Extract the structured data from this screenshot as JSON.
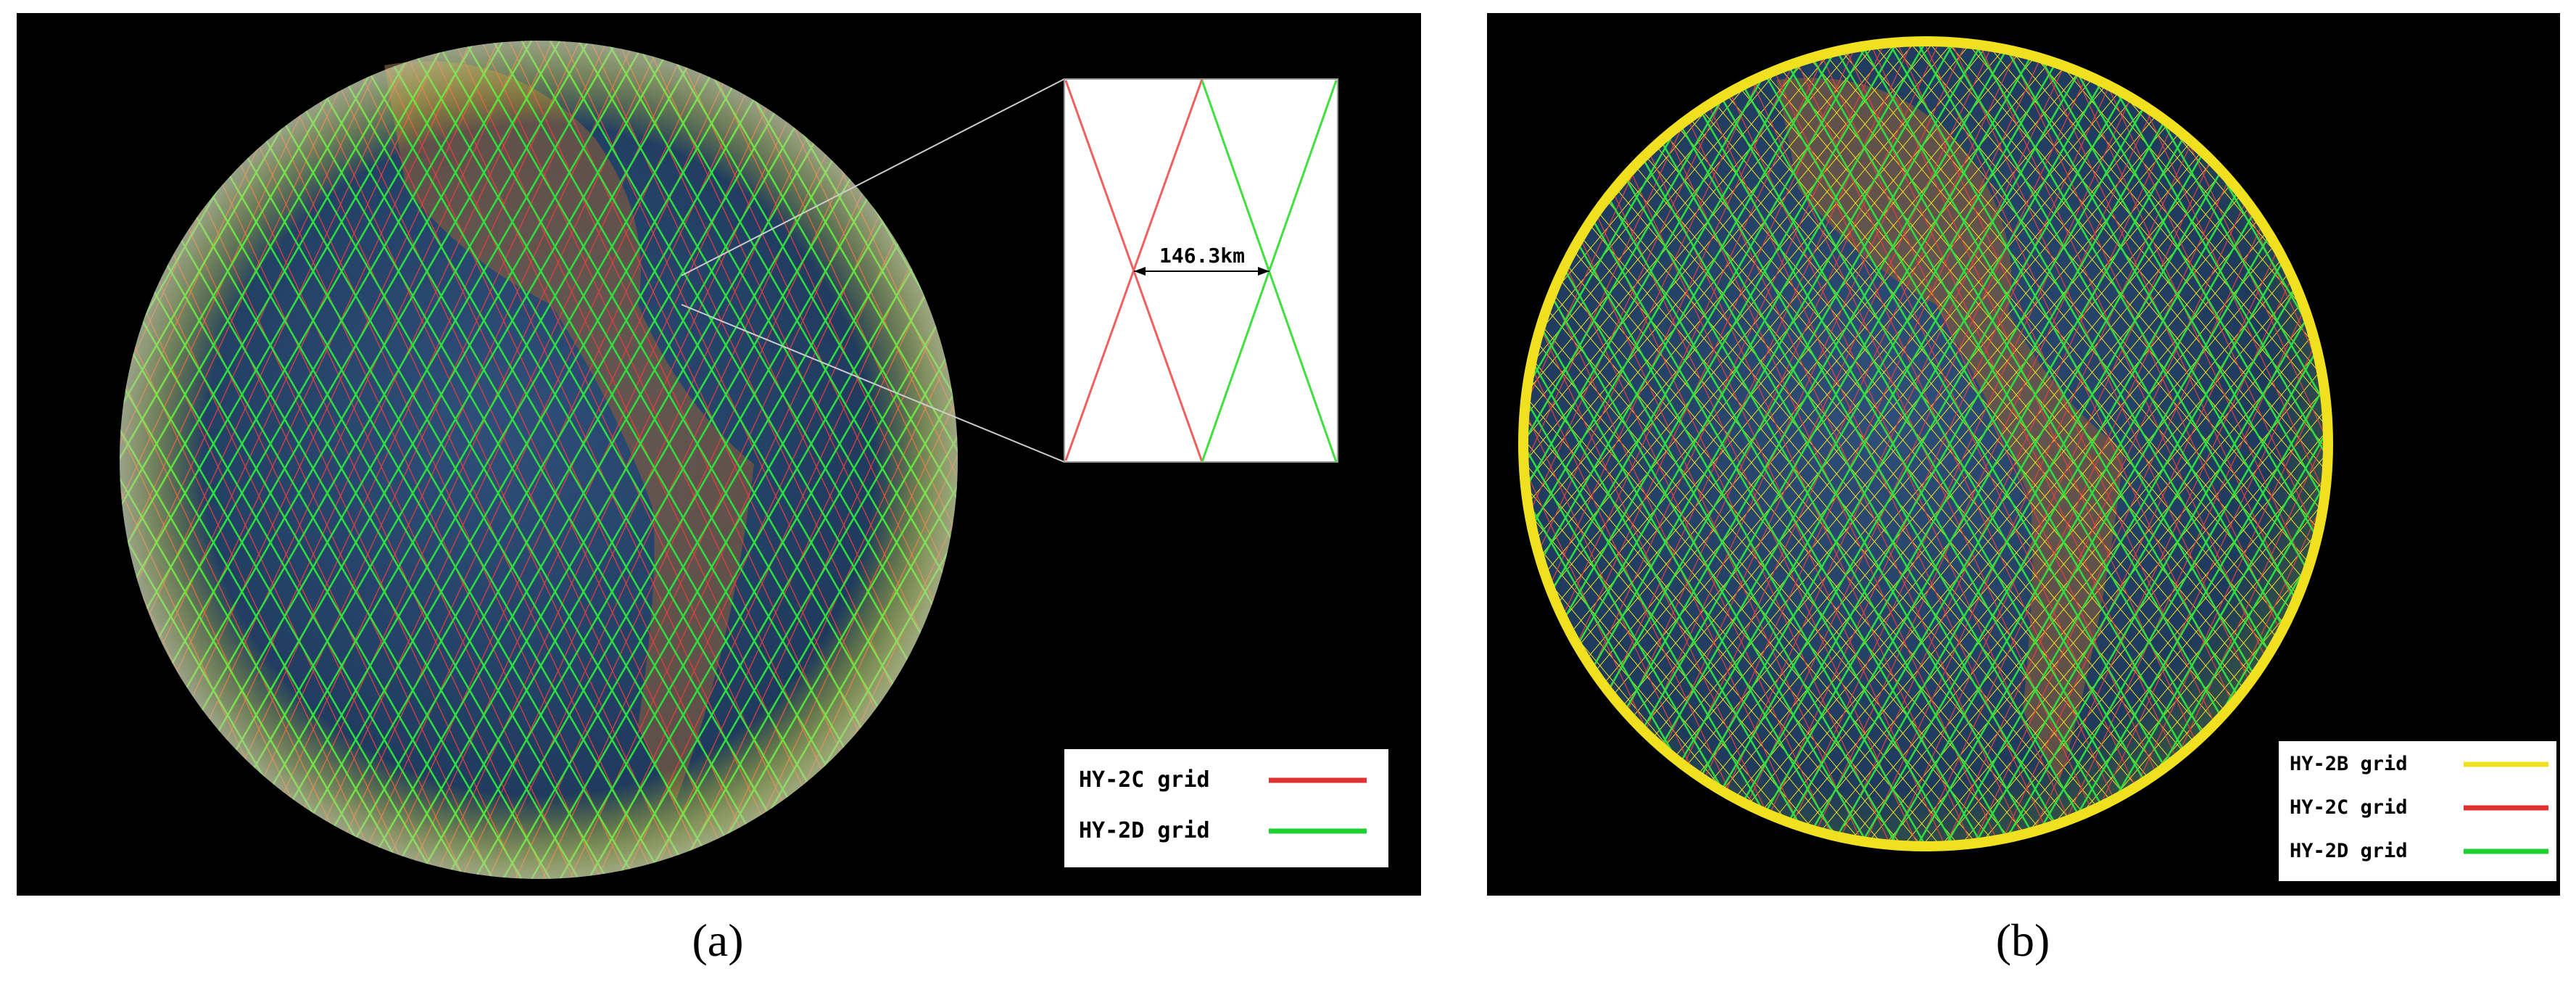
{
  "panel_a": {
    "label": "(a)",
    "inset": {
      "distance": "146.3km"
    },
    "legend": [
      "HY-2C grid",
      "HY-2D grid"
    ]
  },
  "panel_b": {
    "label": "(b)",
    "legend": [
      "HY-2B grid",
      "HY-2C grid",
      "HY-2D grid"
    ]
  }
}
